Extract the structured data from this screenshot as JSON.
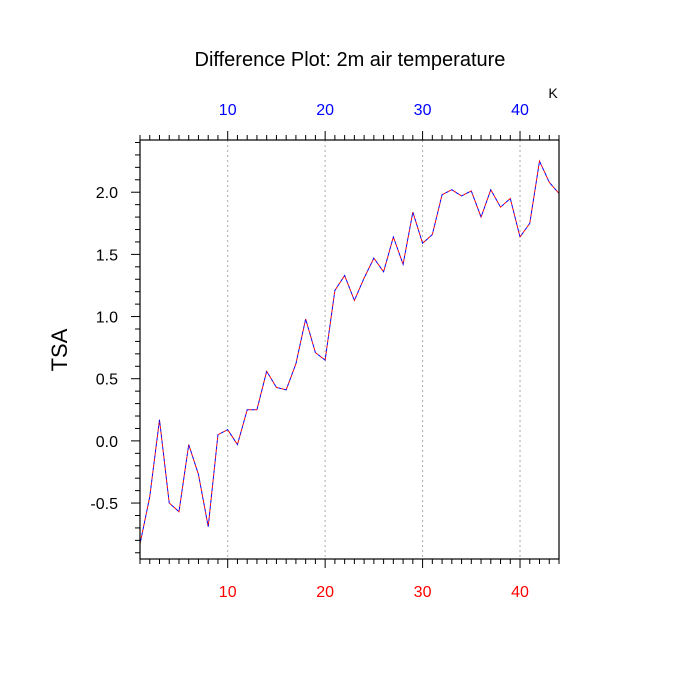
{
  "chart_data": {
    "type": "line",
    "title": "Difference Plot: 2m air temperature",
    "units": "K",
    "ylabel": "TSA",
    "xlim": [
      1,
      44
    ],
    "ylim": [
      -0.95,
      2.42
    ],
    "x_ticks": [
      10,
      20,
      30,
      40
    ],
    "x_tick_labels": [
      "10",
      "20",
      "30",
      "40"
    ],
    "top_tick_color": "#0000ff",
    "bottom_tick_color": "#ff0000",
    "y_ticks": [
      -0.5,
      0.0,
      0.5,
      1.0,
      1.5,
      2.0
    ],
    "y_tick_labels": [
      "-0.5",
      "0.0",
      "0.5",
      "1.0",
      "1.5",
      "2.0"
    ],
    "grid": "vertical dotted at x ticks",
    "line_colors": [
      "#ff0000",
      "#0000ff"
    ],
    "line_style": "dashed (red and blue overlaid)",
    "series": [
      {
        "x": [
          1,
          2,
          3,
          4,
          5,
          6,
          7,
          8,
          9,
          10,
          11,
          12,
          13,
          14,
          15,
          16,
          17,
          18,
          19,
          20,
          21,
          22,
          23,
          24,
          25,
          26,
          27,
          28,
          29,
          30,
          31,
          32,
          33,
          34,
          35,
          36,
          37,
          38,
          39,
          40,
          41,
          42,
          43,
          44
        ],
        "values": [
          -0.83,
          -0.45,
          0.17,
          -0.5,
          -0.57,
          -0.03,
          -0.27,
          -0.69,
          0.05,
          0.09,
          -0.03,
          0.25,
          0.25,
          0.56,
          0.43,
          0.41,
          0.62,
          0.98,
          0.71,
          0.65,
          1.21,
          1.33,
          1.13,
          1.31,
          1.47,
          1.36,
          1.64,
          1.42,
          1.84,
          1.59,
          1.66,
          1.98,
          2.02,
          1.97,
          2.01,
          1.8,
          2.02,
          1.88,
          1.95,
          1.64,
          1.75,
          2.25,
          2.08,
          1.99
        ]
      }
    ]
  }
}
